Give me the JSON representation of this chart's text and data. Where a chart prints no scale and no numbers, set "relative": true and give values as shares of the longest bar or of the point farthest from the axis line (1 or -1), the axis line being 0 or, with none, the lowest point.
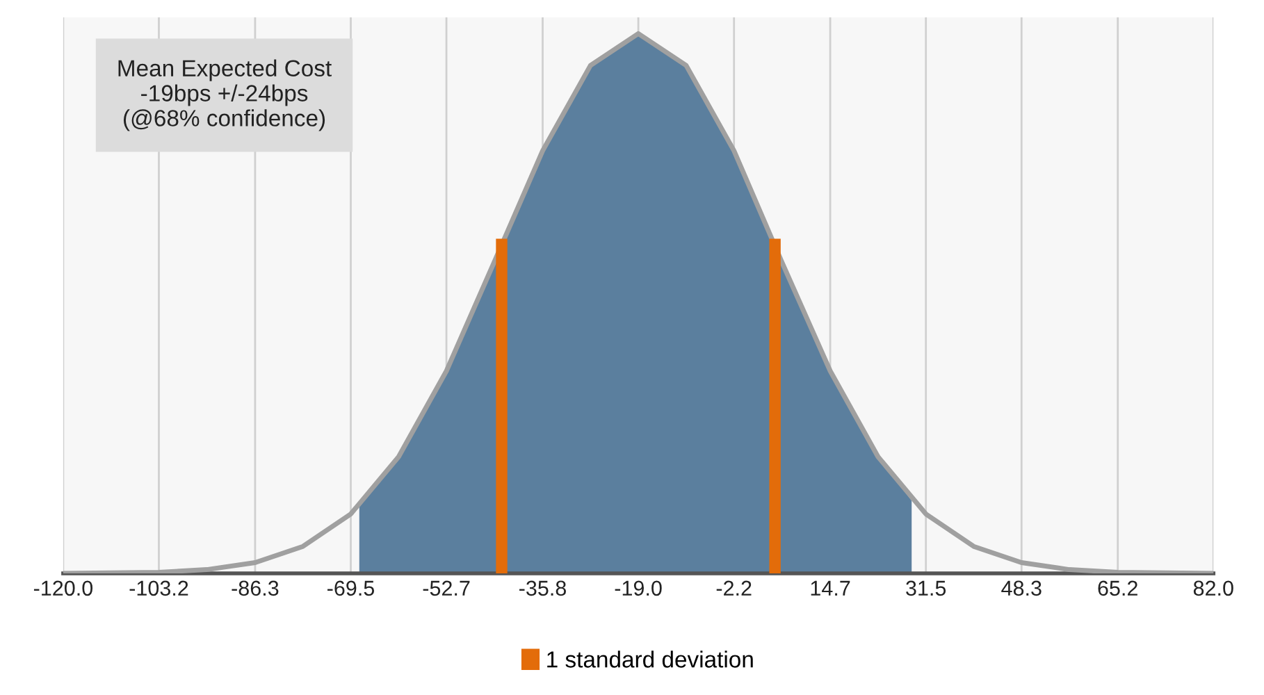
{
  "chart_data": {
    "type": "line",
    "relative": true,
    "tick_labels": "x",
    "grid": "x",
    "legend": "bottom",
    "xlim": [
      -120,
      82
    ],
    "xticks": [
      {
        "value": -120,
        "label": "-120.0"
      },
      {
        "value": -103.2,
        "label": "-103.2"
      },
      {
        "value": -86.3,
        "label": "-86.3"
      },
      {
        "value": -69.5,
        "label": "-69.5"
      },
      {
        "value": -52.7,
        "label": "-52.7"
      },
      {
        "value": -35.8,
        "label": "-35.8"
      },
      {
        "value": -19,
        "label": "-19.0"
      },
      {
        "value": -2.2,
        "label": "-2.2"
      },
      {
        "value": 14.7,
        "label": "14.7"
      },
      {
        "value": 31.5,
        "label": "31.5"
      },
      {
        "value": 48.3,
        "label": "48.3"
      },
      {
        "value": 65.2,
        "label": "65.2"
      },
      {
        "value": 82,
        "label": "82.0"
      }
    ],
    "annotations": [
      "Mean Expected Cost\n-19bps +/-24bps\n(@68% confidence)"
    ],
    "series": [
      {
        "type": "area",
        "color": "#5b7f9e",
        "x": [
          -68,
          -61.1,
          -52.7,
          -44.3,
          -35.8,
          -27.4,
          -19,
          -10.6,
          -2.2,
          6.2,
          14.7,
          23.1,
          29
        ],
        "values": [
          0.125,
          0.216,
          0.375,
          0.577,
          0.783,
          0.941,
          1,
          0.941,
          0.783,
          0.577,
          0.375,
          0.216,
          0.135
        ]
      },
      {
        "color": "#a0a0a0",
        "x": [
          -120,
          -111.6,
          -103.2,
          -94.8,
          -86.3,
          -77.9,
          -69.5,
          -61.1,
          -52.7,
          -44.3,
          -35.8,
          -27.4,
          -19,
          -10.6,
          -2.2,
          6.2,
          14.7,
          23.1,
          31.5,
          39.9,
          48.3,
          56.7,
          65.2,
          73.6,
          82
        ],
        "values": [
          0,
          0.001,
          0.002,
          0.007,
          0.02,
          0.05,
          0.11,
          0.216,
          0.375,
          0.577,
          0.783,
          0.941,
          1,
          0.941,
          0.783,
          0.577,
          0.375,
          0.216,
          0.11,
          0.05,
          0.02,
          0.007,
          0.002,
          0.001,
          0
        ]
      },
      {
        "type": "bar",
        "name": "1 standard deviation",
        "color": "#e36c0a",
        "x": [
          -43,
          5
        ],
        "values": [
          0.62,
          0.62
        ]
      }
    ]
  }
}
